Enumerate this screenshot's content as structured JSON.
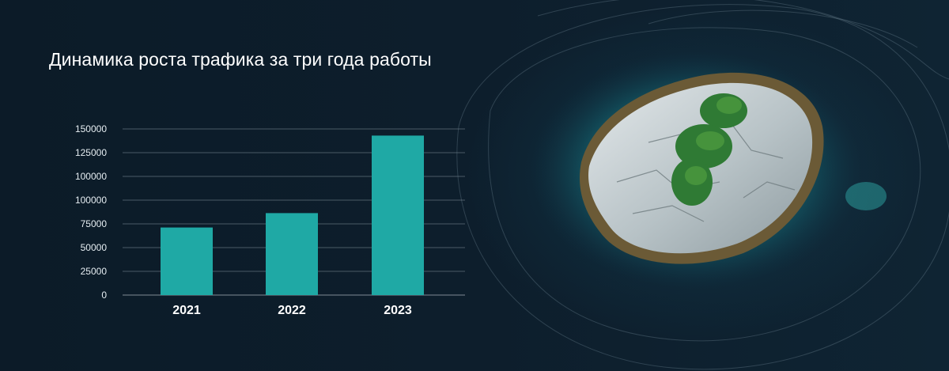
{
  "chart_data": {
    "type": "bar",
    "title": "Динамика роста трафика за три года работы",
    "categories": [
      "2021",
      "2022",
      "2023"
    ],
    "values": [
      61000,
      74000,
      144000
    ],
    "ytick_labels": [
      "0",
      "25000",
      "50000",
      "75000",
      "100000",
      "100000",
      "125000",
      "150000"
    ],
    "ylim": [
      0,
      150000
    ],
    "xlabel": "",
    "ylabel": "",
    "grid": true,
    "bar_color": "#1fa9a5"
  },
  "decor": {
    "image": "island-photo",
    "accent": "#1fa9a5"
  }
}
